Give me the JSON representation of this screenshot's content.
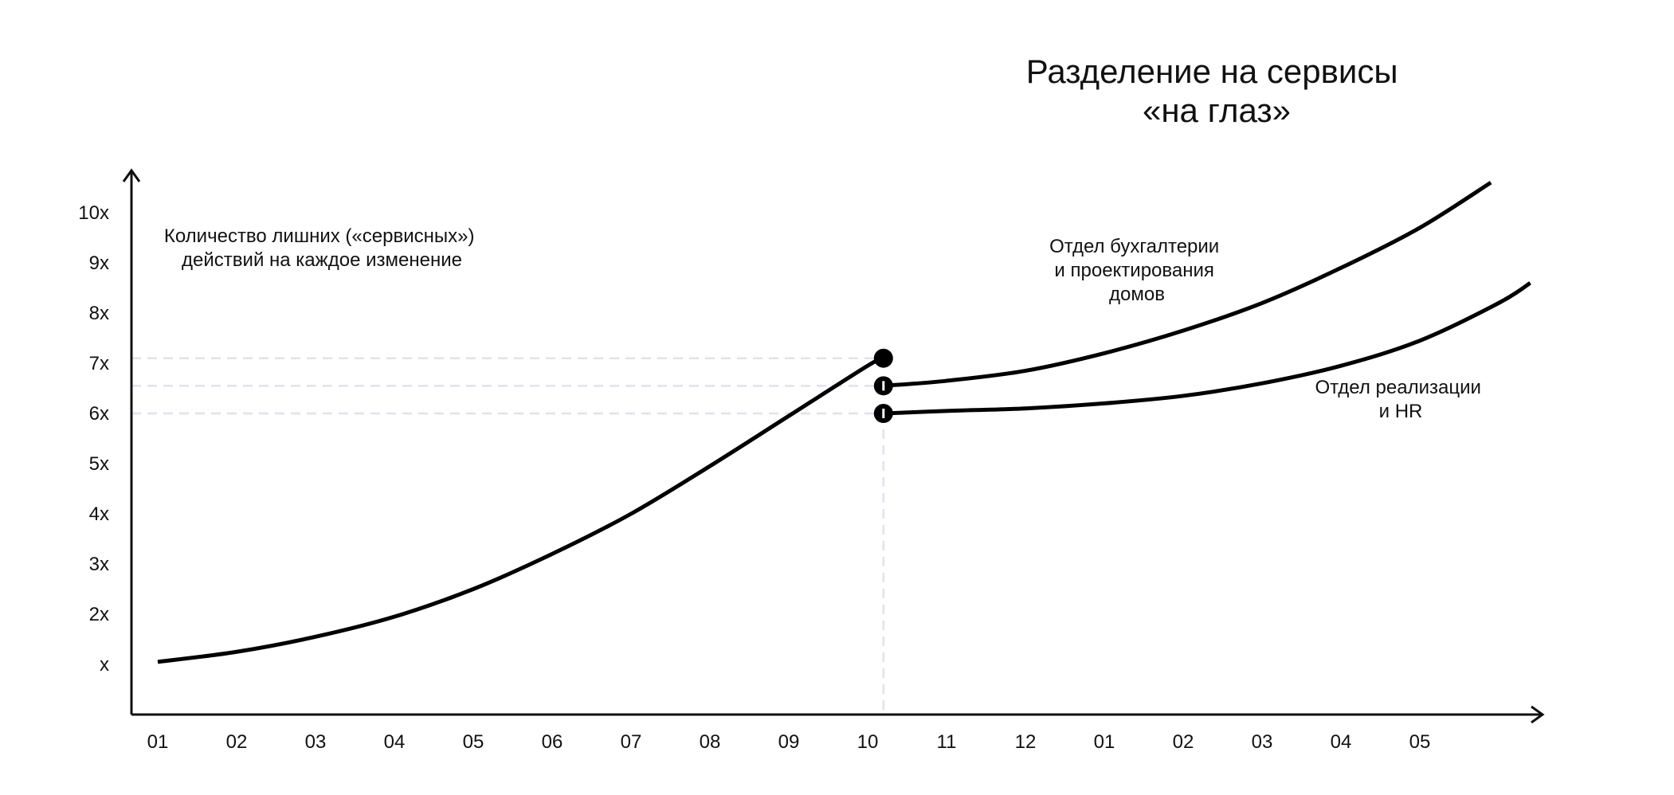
{
  "chart_data": {
    "type": "line",
    "title_lines": [
      "Разделение на сервисы",
      "«на глаз»"
    ],
    "ylabel_lines": [
      "Количество лишних («сервисных»)",
      "действий на каждое изменение"
    ],
    "xlabel": "",
    "x_categories": [
      "01",
      "02",
      "03",
      "04",
      "05",
      "06",
      "07",
      "08",
      "09",
      "10",
      "11",
      "12",
      "01",
      "02",
      "03",
      "04",
      "05"
    ],
    "y_tick_labels": [
      "x",
      "2x",
      "3x",
      "4x",
      "5x",
      "6x",
      "7x",
      "8x",
      "9x",
      "10x"
    ],
    "ylim": [
      0,
      10.8
    ],
    "grid": false,
    "split_x": 9.2,
    "reference_levels": [
      7.1,
      6.55,
      6.0
    ],
    "series": [
      {
        "x": [
          0,
          1,
          2,
          3,
          4,
          5,
          6,
          7,
          8,
          9,
          9.2
        ],
        "y": [
          1.05,
          1.25,
          1.55,
          1.95,
          2.5,
          3.2,
          4.0,
          4.95,
          5.95,
          6.95,
          7.1
        ],
        "end_marker": true
      },
      {
        "name": "Отдел бухгалтерии и проектирования домов",
        "label_lines": [
          "Отдел бухгалтерии",
          "и проектирования",
          "домов"
        ],
        "x": [
          9.2,
          10,
          11,
          12,
          13,
          14,
          15,
          16,
          16.9
        ],
        "y": [
          6.55,
          6.65,
          6.85,
          7.2,
          7.65,
          8.2,
          8.9,
          9.7,
          10.6
        ],
        "start_marker": true
      },
      {
        "name": "Отдел реализации и HR",
        "label_lines": [
          "Отдел реализации",
          "и HR"
        ],
        "x": [
          9.2,
          10,
          11,
          12,
          13,
          14,
          15,
          16,
          17,
          17.4
        ],
        "y": [
          6.0,
          6.05,
          6.1,
          6.2,
          6.35,
          6.6,
          6.95,
          7.45,
          8.2,
          8.6
        ],
        "start_marker": true
      }
    ]
  }
}
